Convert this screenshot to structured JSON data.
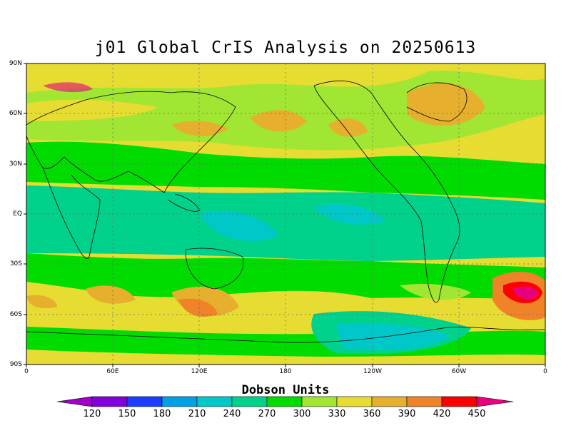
{
  "title": "j01 Global CrIS Analysis on 20250613",
  "lat_labels": [
    "90N",
    "60N",
    "30N",
    "EQ",
    "30S",
    "60S",
    "90S"
  ],
  "lon_labels": [
    "0",
    "60E",
    "120E",
    "180",
    "120W",
    "60W",
    "0"
  ],
  "colorbar": {
    "title": "Dobson Units",
    "ticks": [
      "120",
      "150",
      "180",
      "210",
      "240",
      "270",
      "300",
      "330",
      "360",
      "390",
      "420",
      "450"
    ],
    "colors": [
      "#a000c8",
      "#8200dc",
      "#1e3cff",
      "#00a0e6",
      "#00c8c8",
      "#00d28c",
      "#00dc00",
      "#a0e632",
      "#e6dc32",
      "#e6af2d",
      "#f08228",
      "#fa0000",
      "#e6007d"
    ]
  }
}
